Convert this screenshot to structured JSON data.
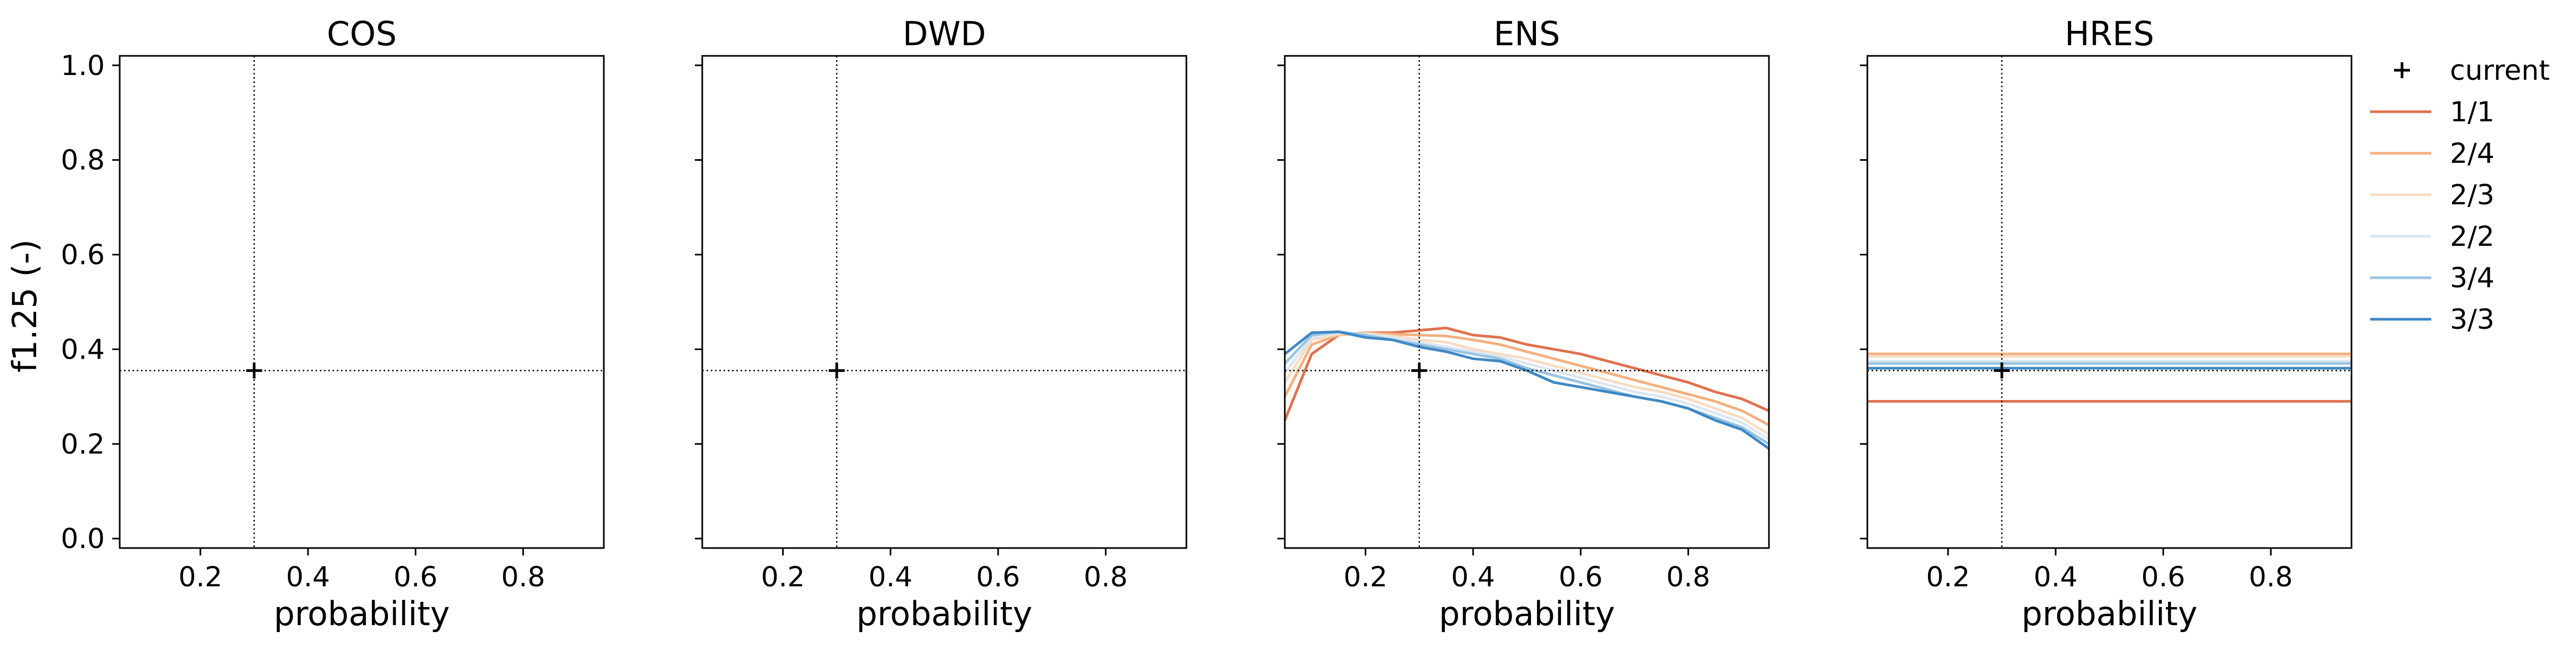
{
  "figure": {
    "ylabel": "f1.25 (-)",
    "legend": {
      "current_label": "current",
      "placement": "right, outside panels"
    }
  },
  "colors": {
    "1/1": "#e0714f",
    "2/4": "#f4b07f",
    "2/3": "#f8dcc2",
    "2/2": "#dbe7f1",
    "3/4": "#99c3e1",
    "3/3": "#3f88c4",
    "axes": "#000000",
    "reference_lines": "#000000"
  },
  "chart_data": [
    {
      "type": "line",
      "title": "COS",
      "xlabel": "probability",
      "ylabel": "f1.25 (-)",
      "xlim": [
        0.05,
        0.95
      ],
      "ylim": [
        -0.02,
        1.02
      ],
      "xticks": [
        0.2,
        0.4,
        0.6,
        0.8
      ],
      "yticks": [
        0.0,
        0.2,
        0.4,
        0.6,
        0.8,
        1.0
      ],
      "grid": false,
      "current": {
        "x": 0.3,
        "y": 0.355
      },
      "series": []
    },
    {
      "type": "line",
      "title": "DWD",
      "xlabel": "probability",
      "xlim": [
        0.05,
        0.95
      ],
      "ylim": [
        -0.02,
        1.02
      ],
      "xticks": [
        0.2,
        0.4,
        0.6,
        0.8
      ],
      "yticks": [
        0.0,
        0.2,
        0.4,
        0.6,
        0.8,
        1.0
      ],
      "grid": false,
      "current": {
        "x": 0.3,
        "y": 0.355
      },
      "series": []
    },
    {
      "type": "line",
      "title": "ENS",
      "xlabel": "probability",
      "xlim": [
        0.05,
        0.95
      ],
      "ylim": [
        -0.02,
        1.02
      ],
      "xticks": [
        0.2,
        0.4,
        0.6,
        0.8
      ],
      "yticks": [
        0.0,
        0.2,
        0.4,
        0.6,
        0.8,
        1.0
      ],
      "grid": false,
      "current": {
        "x": 0.3,
        "y": 0.355
      },
      "x": [
        0.05,
        0.1,
        0.15,
        0.2,
        0.25,
        0.3,
        0.35,
        0.4,
        0.45,
        0.5,
        0.55,
        0.6,
        0.65,
        0.7,
        0.75,
        0.8,
        0.85,
        0.9,
        0.95
      ],
      "series": [
        {
          "name": "1/1",
          "values": [
            0.25,
            0.39,
            0.43,
            0.435,
            0.435,
            0.44,
            0.445,
            0.43,
            0.425,
            0.41,
            0.4,
            0.39,
            0.375,
            0.36,
            0.345,
            0.33,
            0.31,
            0.295,
            0.27
          ]
        },
        {
          "name": "2/4",
          "values": [
            0.3,
            0.41,
            0.43,
            0.435,
            0.432,
            0.43,
            0.428,
            0.42,
            0.41,
            0.395,
            0.38,
            0.365,
            0.35,
            0.335,
            0.32,
            0.305,
            0.29,
            0.27,
            0.24
          ]
        },
        {
          "name": "2/3",
          "values": [
            0.33,
            0.42,
            0.432,
            0.433,
            0.428,
            0.42,
            0.415,
            0.4,
            0.39,
            0.38,
            0.365,
            0.35,
            0.335,
            0.32,
            0.31,
            0.295,
            0.275,
            0.255,
            0.22
          ]
        },
        {
          "name": "2/2",
          "values": [
            0.35,
            0.425,
            0.435,
            0.432,
            0.425,
            0.415,
            0.405,
            0.395,
            0.385,
            0.37,
            0.355,
            0.34,
            0.325,
            0.31,
            0.3,
            0.285,
            0.265,
            0.245,
            0.21
          ]
        },
        {
          "name": "3/4",
          "values": [
            0.37,
            0.43,
            0.437,
            0.43,
            0.42,
            0.41,
            0.4,
            0.39,
            0.38,
            0.36,
            0.345,
            0.33,
            0.315,
            0.3,
            0.29,
            0.275,
            0.255,
            0.235,
            0.2
          ]
        },
        {
          "name": "3/3",
          "values": [
            0.39,
            0.435,
            0.437,
            0.425,
            0.42,
            0.405,
            0.395,
            0.38,
            0.375,
            0.355,
            0.33,
            0.32,
            0.31,
            0.3,
            0.29,
            0.275,
            0.25,
            0.23,
            0.19
          ]
        }
      ]
    },
    {
      "type": "line",
      "title": "HRES",
      "xlabel": "probability",
      "xlim": [
        0.05,
        0.95
      ],
      "ylim": [
        -0.02,
        1.02
      ],
      "xticks": [
        0.2,
        0.4,
        0.6,
        0.8
      ],
      "yticks": [
        0.0,
        0.2,
        0.4,
        0.6,
        0.8,
        1.0
      ],
      "grid": false,
      "current": {
        "x": 0.3,
        "y": 0.355
      },
      "x": [
        0.05,
        0.95
      ],
      "series": [
        {
          "name": "1/1",
          "values": [
            0.29,
            0.29
          ]
        },
        {
          "name": "2/4",
          "values": [
            0.39,
            0.39
          ]
        },
        {
          "name": "2/3",
          "values": [
            0.385,
            0.385
          ]
        },
        {
          "name": "2/2",
          "values": [
            0.375,
            0.375
          ]
        },
        {
          "name": "3/4",
          "values": [
            0.37,
            0.37
          ]
        },
        {
          "name": "3/3",
          "values": [
            0.36,
            0.36
          ]
        }
      ]
    }
  ]
}
